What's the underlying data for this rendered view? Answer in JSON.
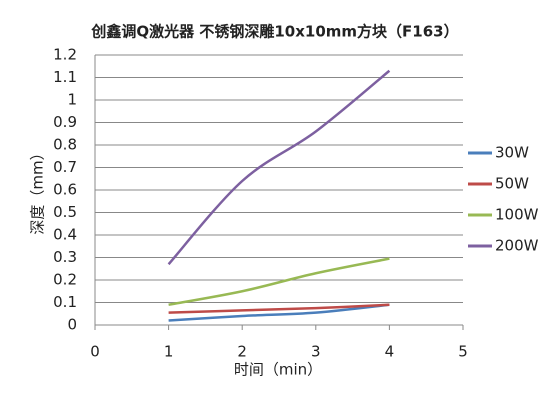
{
  "chart_data": {
    "type": "line",
    "title": "创鑫调Q激光器 不锈钢深雕10x10mm方块（F163）",
    "x_label": "时间（min）",
    "y_label": "深度（mm）",
    "x": [
      1,
      2,
      3,
      4
    ],
    "series": [
      {
        "name": "30W",
        "color": "#4a7ebb",
        "values": [
          0.02,
          0.04,
          0.055,
          0.09
        ]
      },
      {
        "name": "50W",
        "color": "#be4b48",
        "values": [
          0.055,
          0.065,
          0.075,
          0.09
        ]
      },
      {
        "name": "100W",
        "color": "#98b954",
        "values": [
          0.09,
          0.15,
          0.23,
          0.295
        ]
      },
      {
        "name": "200W",
        "color": "#7d60a0",
        "values": [
          0.27,
          0.64,
          0.86,
          1.13
        ]
      }
    ],
    "xlim": [
      0,
      5
    ],
    "xticks": [
      0,
      1,
      2,
      3,
      4,
      5
    ],
    "ylim": [
      0,
      1.2
    ],
    "yticks": [
      0,
      0.1,
      0.2,
      0.3,
      0.4,
      0.5,
      0.6,
      0.7,
      0.8,
      0.9,
      1,
      1.1,
      1.2
    ],
    "grid": true,
    "legend": "right"
  }
}
